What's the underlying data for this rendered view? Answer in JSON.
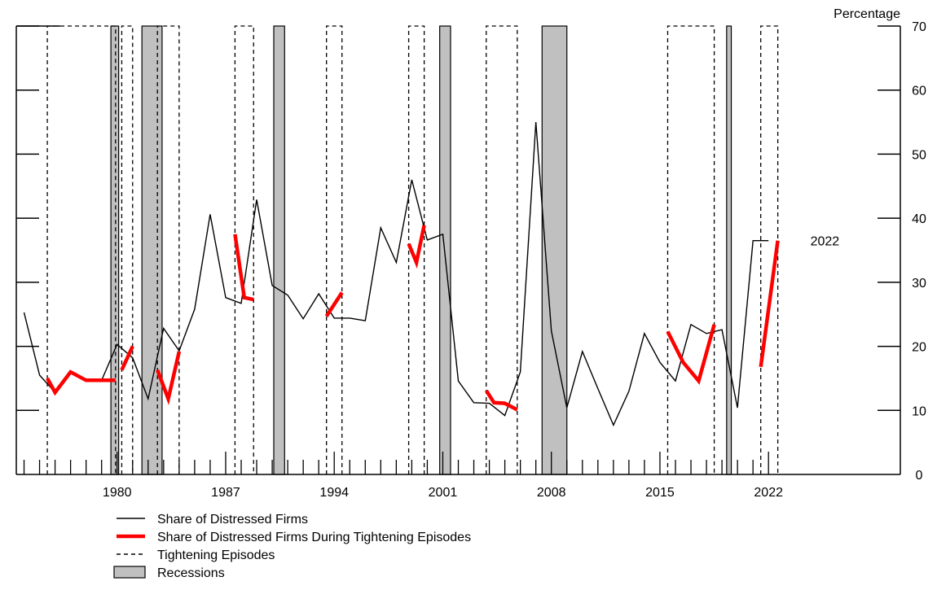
{
  "chart_data": {
    "type": "line",
    "ylabel": "Percentage",
    "ylim": [
      0,
      70
    ],
    "yticks": [
      0,
      10,
      20,
      30,
      40,
      50,
      60,
      70
    ],
    "xlim": [
      1973.5,
      2030.5
    ],
    "xticks": [
      1980,
      1987,
      1994,
      2001,
      2008,
      2015,
      2022
    ],
    "xtick_labels": [
      "1980",
      "1987",
      "1994",
      "2001",
      "2008",
      "2015",
      "2022"
    ],
    "annotation": {
      "text": "2022",
      "x": 2024.7,
      "y": 36.5
    },
    "colors": {
      "distressed": "#000000",
      "tightening_series": "#ff0000",
      "recession_fill": "#c0c0c0"
    },
    "recessions": [
      [
        1979.6,
        1980.1
      ],
      [
        1981.6,
        1982.9
      ],
      [
        1990.1,
        1990.8
      ],
      [
        2000.8,
        2001.5
      ],
      [
        2007.4,
        2009.0
      ],
      [
        2019.3,
        2019.6
      ]
    ],
    "tightening_episodes": [
      [
        1975.5,
        1979.9
      ],
      [
        1980.3,
        1981.0
      ],
      [
        1982.6,
        1984.0
      ],
      [
        1987.6,
        1988.8
      ],
      [
        1993.5,
        1994.5
      ],
      [
        1998.8,
        1999.8
      ],
      [
        2003.8,
        2005.8
      ],
      [
        2015.5,
        2018.5
      ],
      [
        2021.5,
        2022.6
      ]
    ],
    "series": [
      {
        "name": "Share of Distressed Firms",
        "style": "thin-black",
        "x": [
          1974,
          1975,
          1976,
          1977,
          1978,
          1979,
          1980,
          1981,
          1982,
          1983,
          1984,
          1985,
          1986,
          1987,
          1988,
          1989,
          1990,
          1991,
          1992,
          1993,
          1994,
          1995,
          1996,
          1997,
          1998,
          1999,
          2000,
          2001,
          2002,
          2003,
          2004,
          2005,
          2006,
          2007,
          2008,
          2009,
          2010,
          2011,
          2012,
          2013,
          2014,
          2015,
          2016,
          2017,
          2018,
          2019,
          2020,
          2021,
          2022
        ],
        "y": [
          25.3,
          15.5,
          12.8,
          16.0,
          14.7,
          14.7,
          20.3,
          18.2,
          11.8,
          22.8,
          19.3,
          25.8,
          40.6,
          27.6,
          26.7,
          42.9,
          29.5,
          28.0,
          24.3,
          28.2,
          24.4,
          24.4,
          24.0,
          38.5,
          33.1,
          46.0,
          36.6,
          37.5,
          14.6,
          11.2,
          11.1,
          9.2,
          16.0,
          55.0,
          22.4,
          10.4,
          19.2,
          13.4,
          7.7,
          13.0,
          22.0,
          17.5,
          14.6,
          23.4,
          22.0,
          22.6,
          10.4,
          36.5,
          36.5
        ]
      },
      {
        "name": "Share of Distressed Firms During Tightening Episodes",
        "style": "thick-red",
        "segments": [
          {
            "x": [
              1975.5,
              1976,
              1977,
              1978,
              1979,
              1979.9
            ],
            "y": [
              15.0,
              12.8,
              16.0,
              14.7,
              14.7,
              14.7
            ]
          },
          {
            "x": [
              1980.3,
              1981.0
            ],
            "y": [
              16.3,
              20.0
            ]
          },
          {
            "x": [
              1982.6,
              1983.3,
              1984.0
            ],
            "y": [
              16.3,
              11.8,
              19.2
            ]
          },
          {
            "x": [
              1987.6,
              1988.2,
              1988.8
            ],
            "y": [
              37.5,
              27.6,
              27.3
            ]
          },
          {
            "x": [
              1993.5,
              1994.5
            ],
            "y": [
              24.7,
              28.4
            ]
          },
          {
            "x": [
              1998.8,
              1999.3,
              1999.8
            ],
            "y": [
              36.0,
              33.1,
              38.9
            ]
          },
          {
            "x": [
              2003.8,
              2004.3,
              2005.0,
              2005.8
            ],
            "y": [
              13.1,
              11.2,
              11.1,
              10.1
            ]
          },
          {
            "x": [
              2015.5,
              2016.5,
              2017.5,
              2018.5
            ],
            "y": [
              22.3,
              17.5,
              14.6,
              23.4
            ]
          },
          {
            "x": [
              2021.5,
              2022.6
            ],
            "y": [
              16.8,
              36.5
            ]
          }
        ]
      }
    ],
    "legend": [
      {
        "label": "Share of Distressed Firms",
        "kind": "thin-black-line"
      },
      {
        "label": "Share of Distressed Firms During Tightening Episodes",
        "kind": "thick-red-line"
      },
      {
        "label": "Tightening Episodes",
        "kind": "dashed-black-line"
      },
      {
        "label": "Recessions",
        "kind": "gray-box"
      }
    ]
  }
}
